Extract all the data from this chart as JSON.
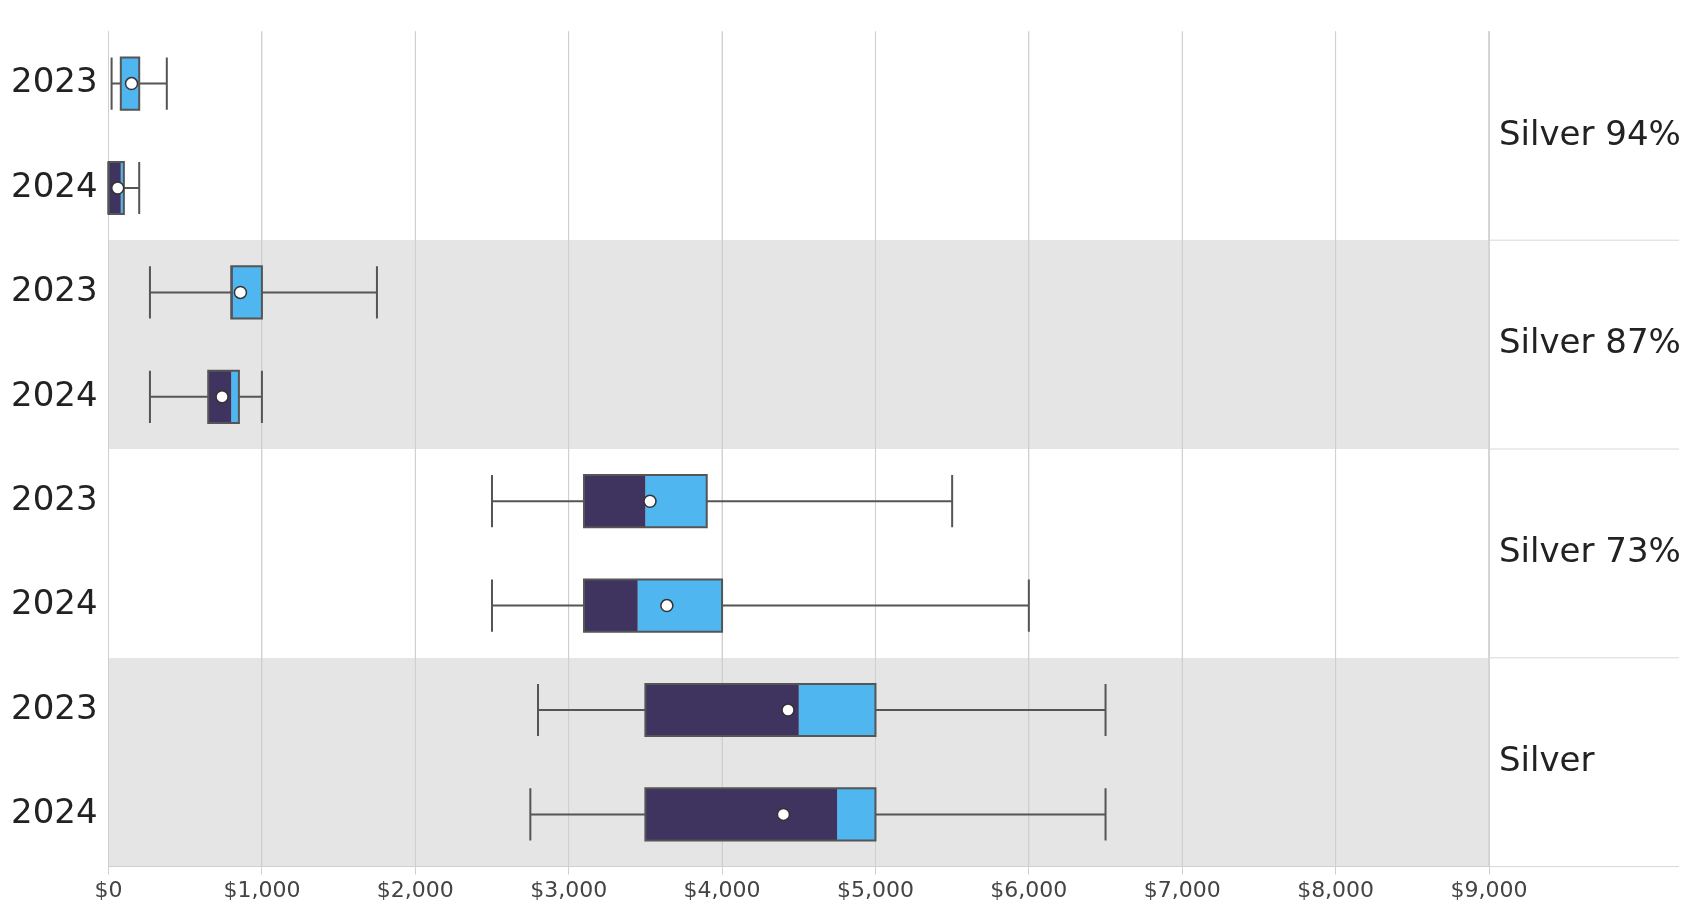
{
  "chart_data": {
    "type": "box",
    "orientation": "horizontal",
    "categories": [
      "2023",
      "2024",
      "2023",
      "2024",
      "2023",
      "2024",
      "2023",
      "2024"
    ],
    "series": [
      {
        "colors": [
          [
            "#3f3360",
            "#4fb6f0"
          ],
          [
            "#3f3360",
            "#4fb6f0"
          ],
          [
            "#3f3360",
            "#4fb6f0"
          ],
          [
            "#3f3360",
            "#4fb6f0"
          ],
          [
            "#3f3360",
            "#4fb6f0"
          ],
          [
            "#3f3360",
            "#4fb6f0"
          ],
          [
            "#3f3360",
            "#4fb6f0"
          ],
          [
            "#3f3360",
            "#4fb6f0"
          ]
        ],
        "boxes": [
          {
            "low": 20,
            "q1": 80,
            "median": 80,
            "q3": 200,
            "high": 380,
            "mean": 150
          },
          {
            "low": 0,
            "q1": 0,
            "median": 80,
            "q3": 100,
            "high": 200,
            "mean": 60
          },
          {
            "low": 270,
            "q1": 800,
            "median": 810,
            "q3": 1000,
            "high": 1750,
            "mean": 860
          },
          {
            "low": 270,
            "q1": 650,
            "median": 800,
            "q3": 850,
            "high": 1000,
            "mean": 740
          },
          {
            "low": 2500,
            "q1": 3100,
            "median": 3500,
            "q3": 3900,
            "high": 5500,
            "mean": 3530
          },
          {
            "low": 2500,
            "q1": 3100,
            "median": 3450,
            "q3": 4000,
            "high": 6000,
            "mean": 3640
          },
          {
            "low": 2800,
            "q1": 3500,
            "median": 4500,
            "q3": 5000,
            "high": 6500,
            "mean": 4430
          },
          {
            "low": 2750,
            "q1": 3500,
            "median": 4750,
            "q3": 5000,
            "high": 6500,
            "mean": 4400
          }
        ]
      }
    ],
    "xlim": [
      0,
      9000
    ],
    "xticks": [
      {
        "value": 0,
        "label": "$0"
      },
      {
        "value": 1000,
        "label": "$1,000"
      },
      {
        "value": 2000,
        "label": "$2,000"
      },
      {
        "value": 3000,
        "label": "$3,000"
      },
      {
        "value": 4000,
        "label": "$4,000"
      },
      {
        "value": 5000,
        "label": "$5,000"
      },
      {
        "value": 6000,
        "label": "$6,000"
      },
      {
        "value": 7000,
        "label": "$7,000"
      },
      {
        "value": 8000,
        "label": "$8,000"
      },
      {
        "value": 9000,
        "label": "$9,000"
      }
    ],
    "annotations": [
      "Silver 94%",
      "Silver 87%",
      "Silver 73%",
      "Silver"
    ],
    "grid": "x",
    "legend": false
  }
}
